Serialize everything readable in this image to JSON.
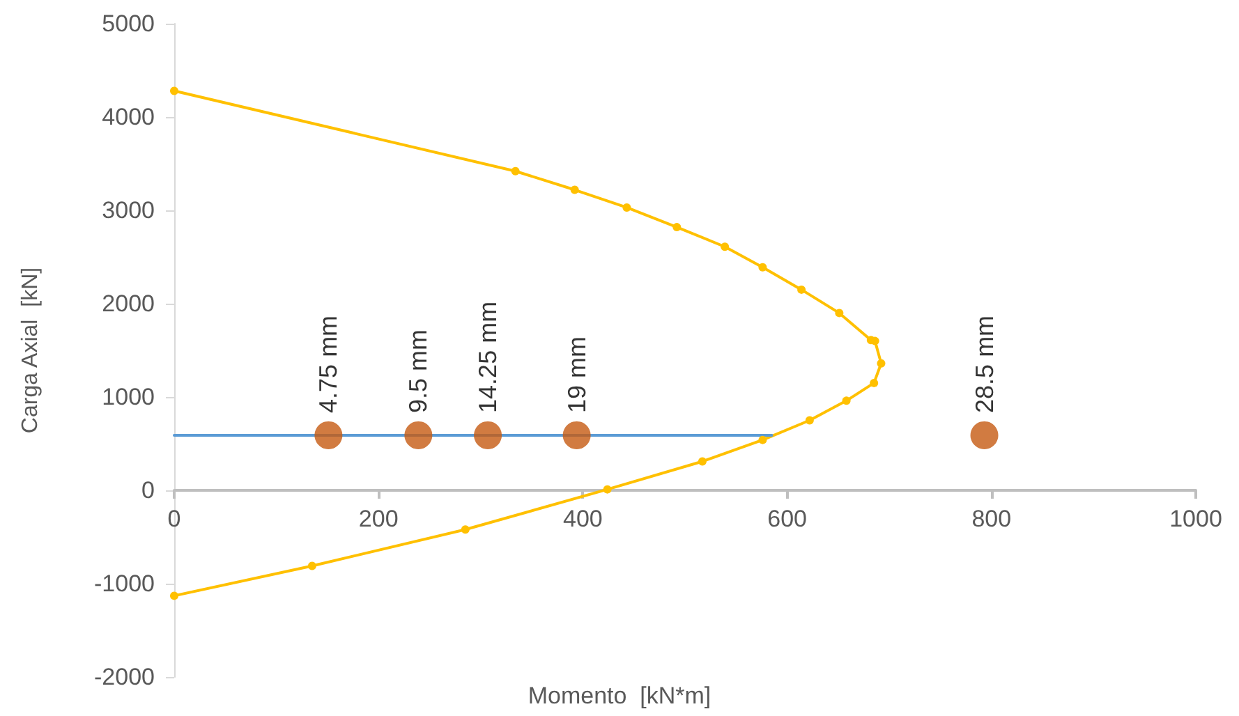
{
  "chart_data": {
    "type": "line",
    "ylabel": "Carga Axial  [kN]",
    "xlim": [
      0,
      1000
    ],
    "xticks": [
      0,
      200,
      400,
      600,
      800,
      1000
    ],
    "ylim": [
      -2000,
      5000
    ],
    "yticks": [
      -2000,
      -1000,
      0,
      1000,
      2000,
      3000,
      4000,
      5000
    ],
    "annotations": [
      "Momento  [kN*m]",
      {
        "text": "4.75 mm",
        "x": 151,
        "y": 590
      },
      {
        "text": "9.5 mm",
        "x": 239,
        "y": 590
      },
      {
        "text": "14.25 mm",
        "x": 307,
        "y": 590
      },
      {
        "text": "19 mm",
        "x": 394,
        "y": 590
      },
      {
        "text": "28.5 mm",
        "x": 793,
        "y": 590
      }
    ],
    "series": [
      {
        "color": "#ffc000",
        "marker": "circle",
        "x": [
          0,
          334,
          392,
          443,
          492,
          539,
          576,
          614,
          651,
          682,
          686,
          692,
          685,
          658,
          622,
          576,
          517,
          424,
          285,
          135,
          0
        ],
        "values": [
          4280,
          3420,
          3220,
          3030,
          2820,
          2610,
          2390,
          2150,
          1900,
          1610,
          1600,
          1360,
          1150,
          960,
          750,
          540,
          310,
          10,
          -420,
          -810,
          -1130
        ]
      },
      {
        "color": "#5b9bd5",
        "marker": "none",
        "x": [
          0,
          585
        ],
        "values": [
          590,
          590
        ]
      },
      {
        "type": "scatter",
        "color": "#c55a11",
        "marker": "circle",
        "x": [
          151,
          239,
          307,
          394,
          793
        ],
        "values": [
          590,
          590,
          590,
          590,
          590
        ]
      }
    ]
  }
}
